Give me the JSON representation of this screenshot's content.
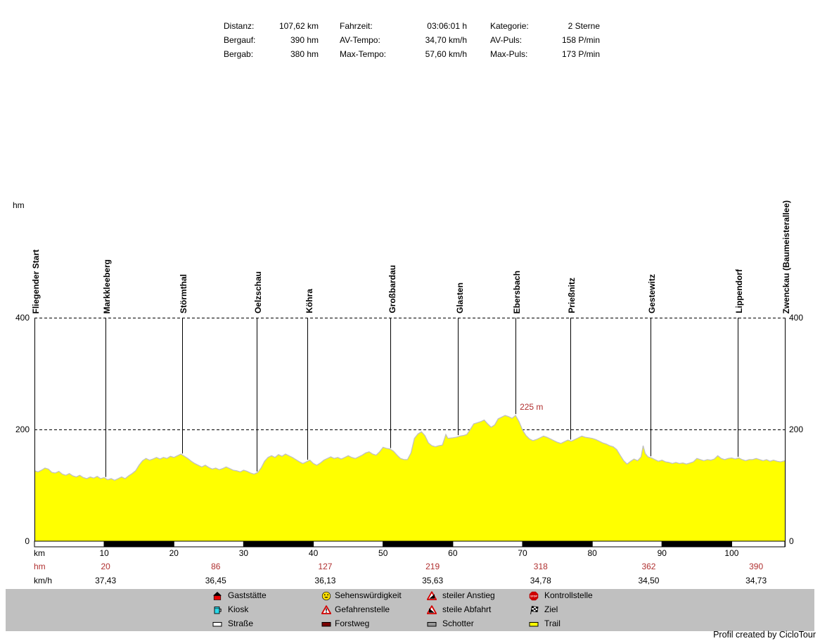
{
  "stats": {
    "columns": [
      {
        "rows": [
          {
            "label": "Distanz:",
            "value": "107,62 km"
          },
          {
            "label": "Bergauf:",
            "value": "390 hm"
          },
          {
            "label": "Bergab:",
            "value": "380 hm"
          }
        ]
      },
      {
        "rows": [
          {
            "label": "Fahrzeit:",
            "value": "03:06:01 h"
          },
          {
            "label": "AV-Tempo:",
            "value": "34,70 km/h"
          },
          {
            "label": "Max-Tempo:",
            "value": "57,60 km/h"
          }
        ]
      },
      {
        "rows": [
          {
            "label": "Kategorie:",
            "value": "2 Sterne"
          },
          {
            "label": "AV-Puls:",
            "value": "158 P/min"
          },
          {
            "label": "Max-Puls:",
            "value": "173 P/min"
          }
        ]
      }
    ]
  },
  "chart_data": {
    "type": "area",
    "y_unit": "hm",
    "x_unit": "km",
    "x_range": [
      0,
      107.62
    ],
    "y_range": [
      0,
      400
    ],
    "y_ticks": [
      400,
      200,
      0
    ],
    "grid_y": [
      400,
      200
    ],
    "x_ticks": [
      10,
      20,
      30,
      40,
      50,
      60,
      70,
      80,
      90,
      100
    ],
    "km_row_label": "km",
    "waypoints": [
      {
        "name": "Fliegender Start",
        "km": 0
      },
      {
        "name": "Markkleeberg",
        "km": 10.2
      },
      {
        "name": "Störmthal",
        "km": 21.2
      },
      {
        "name": "Oelzschau",
        "km": 31.9
      },
      {
        "name": "Köhra",
        "km": 39.2
      },
      {
        "name": "Großbardau",
        "km": 51.1
      },
      {
        "name": "Glasten",
        "km": 60.8
      },
      {
        "name": "Ebersbach",
        "km": 69.0
      },
      {
        "name": "Prießnitz",
        "km": 76.9
      },
      {
        "name": "Gestewitz",
        "km": 88.4
      },
      {
        "name": "Lippendorf",
        "km": 100.9
      },
      {
        "name": "Zwenckau (Baumeisterallee)",
        "km": 107.62
      }
    ],
    "peak_annotation": {
      "text": "225 m",
      "km": 69.4,
      "hm": 225
    },
    "hm_row": {
      "label": "hm",
      "positions_km": [
        10.2,
        26.0,
        41.7,
        57.1,
        72.6,
        88.1,
        103.5
      ],
      "values": [
        "20",
        "86",
        "127",
        "219",
        "318",
        "362",
        "390"
      ]
    },
    "kmh_row": {
      "label": "km/h",
      "values": [
        "37,43",
        "36,45",
        "36,13",
        "35,63",
        "34,78",
        "34,50",
        "34,73"
      ]
    },
    "profile": [
      [
        0,
        126
      ],
      [
        0.5,
        124
      ],
      [
        1,
        127
      ],
      [
        1.5,
        131
      ],
      [
        2,
        129
      ],
      [
        2.5,
        123
      ],
      [
        3,
        122
      ],
      [
        3.5,
        125
      ],
      [
        4,
        120
      ],
      [
        4.5,
        118
      ],
      [
        5,
        121
      ],
      [
        5.5,
        117
      ],
      [
        6,
        115
      ],
      [
        6.5,
        118
      ],
      [
        7,
        114
      ],
      [
        7.5,
        112
      ],
      [
        8,
        115
      ],
      [
        8.5,
        113
      ],
      [
        9,
        116
      ],
      [
        9.5,
        112
      ],
      [
        10,
        114
      ],
      [
        10.5,
        110
      ],
      [
        11,
        112
      ],
      [
        11.5,
        109
      ],
      [
        12,
        112
      ],
      [
        12.5,
        115
      ],
      [
        13,
        112
      ],
      [
        13.5,
        117
      ],
      [
        14,
        121
      ],
      [
        14.5,
        126
      ],
      [
        15,
        136
      ],
      [
        15.5,
        144
      ],
      [
        16,
        148
      ],
      [
        16.5,
        145
      ],
      [
        17,
        147
      ],
      [
        17.5,
        150
      ],
      [
        18,
        147
      ],
      [
        18.5,
        150
      ],
      [
        19,
        148
      ],
      [
        19.5,
        152
      ],
      [
        20,
        150
      ],
      [
        20.5,
        153
      ],
      [
        21,
        156
      ],
      [
        21.5,
        152
      ],
      [
        22,
        148
      ],
      [
        22.5,
        143
      ],
      [
        23,
        139
      ],
      [
        23.5,
        136
      ],
      [
        24,
        133
      ],
      [
        24.5,
        136
      ],
      [
        25,
        132
      ],
      [
        25.5,
        129
      ],
      [
        26,
        131
      ],
      [
        26.5,
        128
      ],
      [
        27,
        130
      ],
      [
        27.5,
        133
      ],
      [
        28,
        130
      ],
      [
        28.5,
        127
      ],
      [
        29,
        126
      ],
      [
        29.5,
        124
      ],
      [
        30,
        127
      ],
      [
        30.5,
        125
      ],
      [
        31,
        122
      ],
      [
        31.5,
        120
      ],
      [
        32,
        123
      ],
      [
        32.5,
        131
      ],
      [
        33,
        143
      ],
      [
        33.5,
        150
      ],
      [
        34,
        153
      ],
      [
        34.5,
        150
      ],
      [
        35,
        155
      ],
      [
        35.5,
        152
      ],
      [
        36,
        156
      ],
      [
        36.5,
        153
      ],
      [
        37,
        150
      ],
      [
        37.5,
        146
      ],
      [
        38,
        142
      ],
      [
        38.5,
        139
      ],
      [
        39,
        142
      ],
      [
        39.5,
        145
      ],
      [
        40,
        139
      ],
      [
        40.5,
        136
      ],
      [
        41,
        140
      ],
      [
        41.5,
        145
      ],
      [
        42,
        148
      ],
      [
        42.5,
        151
      ],
      [
        43,
        148
      ],
      [
        43.5,
        150
      ],
      [
        44,
        147
      ],
      [
        44.5,
        150
      ],
      [
        45,
        153
      ],
      [
        45.5,
        150
      ],
      [
        46,
        148
      ],
      [
        46.5,
        151
      ],
      [
        47,
        154
      ],
      [
        47.5,
        158
      ],
      [
        48,
        160
      ],
      [
        48.5,
        156
      ],
      [
        49,
        154
      ],
      [
        49.5,
        160
      ],
      [
        50,
        168
      ],
      [
        50.5,
        166
      ],
      [
        51,
        165
      ],
      [
        51.5,
        161
      ],
      [
        52,
        154
      ],
      [
        52.5,
        148
      ],
      [
        53,
        146
      ],
      [
        53.5,
        146
      ],
      [
        54,
        158
      ],
      [
        54.5,
        184
      ],
      [
        55,
        192
      ],
      [
        55.5,
        196
      ],
      [
        56,
        189
      ],
      [
        56.5,
        176
      ],
      [
        57,
        171
      ],
      [
        57.5,
        169
      ],
      [
        58,
        171
      ],
      [
        58.5,
        172
      ],
      [
        59,
        191
      ],
      [
        59.3,
        184
      ],
      [
        60,
        185
      ],
      [
        60.5,
        186
      ],
      [
        61,
        188
      ],
      [
        61.5,
        189
      ],
      [
        62,
        191
      ],
      [
        62.5,
        200
      ],
      [
        63,
        210
      ],
      [
        63.5,
        212
      ],
      [
        64,
        214
      ],
      [
        64.5,
        217
      ],
      [
        65,
        210
      ],
      [
        65.5,
        204
      ],
      [
        66,
        208
      ],
      [
        66.5,
        219
      ],
      [
        67,
        222
      ],
      [
        67.5,
        225
      ],
      [
        68,
        223
      ],
      [
        68.5,
        220
      ],
      [
        69,
        225
      ],
      [
        69.5,
        214
      ],
      [
        70,
        199
      ],
      [
        70.5,
        189
      ],
      [
        71,
        183
      ],
      [
        71.5,
        180
      ],
      [
        72,
        182
      ],
      [
        72.5,
        185
      ],
      [
        73,
        188
      ],
      [
        73.5,
        186
      ],
      [
        74,
        183
      ],
      [
        74.5,
        180
      ],
      [
        75,
        177
      ],
      [
        75.5,
        175
      ],
      [
        76,
        178
      ],
      [
        76.5,
        181
      ],
      [
        77,
        179
      ],
      [
        77.5,
        182
      ],
      [
        78,
        185
      ],
      [
        78.5,
        188
      ],
      [
        79,
        186
      ],
      [
        79.5,
        185
      ],
      [
        80,
        184
      ],
      [
        80.5,
        182
      ],
      [
        81,
        179
      ],
      [
        81.5,
        176
      ],
      [
        82,
        174
      ],
      [
        82.5,
        171
      ],
      [
        83,
        169
      ],
      [
        83.5,
        164
      ],
      [
        84,
        154
      ],
      [
        84.5,
        144
      ],
      [
        85,
        138
      ],
      [
        85.5,
        143
      ],
      [
        86,
        147
      ],
      [
        86.5,
        144
      ],
      [
        87,
        151
      ],
      [
        87.3,
        171
      ],
      [
        87.6,
        157
      ],
      [
        88,
        151
      ],
      [
        88.5,
        149
      ],
      [
        89,
        146
      ],
      [
        89.5,
        143
      ],
      [
        90,
        145
      ],
      [
        90.5,
        142
      ],
      [
        91,
        141
      ],
      [
        91.5,
        139
      ],
      [
        92,
        141
      ],
      [
        92.5,
        139
      ],
      [
        93,
        140
      ],
      [
        93.5,
        138
      ],
      [
        94,
        140
      ],
      [
        94.5,
        142
      ],
      [
        95,
        148
      ],
      [
        95.5,
        146
      ],
      [
        96,
        144
      ],
      [
        96.5,
        146
      ],
      [
        97,
        145
      ],
      [
        97.5,
        147
      ],
      [
        98,
        153
      ],
      [
        98.5,
        148
      ],
      [
        99,
        146
      ],
      [
        99.5,
        148
      ],
      [
        100,
        149
      ],
      [
        100.5,
        147
      ],
      [
        101,
        149
      ],
      [
        101.5,
        146
      ],
      [
        102,
        144
      ],
      [
        102.5,
        146
      ],
      [
        103,
        146
      ],
      [
        103.5,
        148
      ],
      [
        104,
        146
      ],
      [
        104.5,
        144
      ],
      [
        105,
        146
      ],
      [
        105.5,
        143
      ],
      [
        106,
        145
      ],
      [
        106.5,
        143
      ],
      [
        107,
        142
      ],
      [
        107.62,
        144
      ]
    ]
  },
  "legend": {
    "columns": [
      [
        {
          "icon": "house-icon",
          "label": "Gaststätte"
        },
        {
          "icon": "kiosk-icon",
          "label": "Kiosk"
        },
        {
          "icon": "road-icon",
          "label": "Straße"
        }
      ],
      [
        {
          "icon": "smiley-icon",
          "label": "Sehenswürdigkeit"
        },
        {
          "icon": "danger-icon",
          "label": "Gefahrenstelle"
        },
        {
          "icon": "forest-road-icon",
          "label": "Forstweg"
        }
      ],
      [
        {
          "icon": "steep-ascent-icon",
          "label": "steiler Anstieg"
        },
        {
          "icon": "steep-descent-icon",
          "label": "steile Abfahrt"
        },
        {
          "icon": "gravel-icon",
          "label": "Schotter"
        }
      ],
      [
        {
          "icon": "stop-icon",
          "label": "Kontrollstelle"
        },
        {
          "icon": "finish-flag-icon",
          "label": "Ziel"
        },
        {
          "icon": "trail-icon",
          "label": "Trail"
        }
      ]
    ]
  },
  "footer": {
    "credit": "Profil created by CicloTour"
  },
  "colors": {
    "profile_fill": "#ffff00",
    "profile_outline": "#c0c0c0",
    "annotation_red": "#b03030",
    "legend_bg": "#c0c0c0",
    "bar_black": "#000000",
    "bar_white": "#ffffff"
  }
}
